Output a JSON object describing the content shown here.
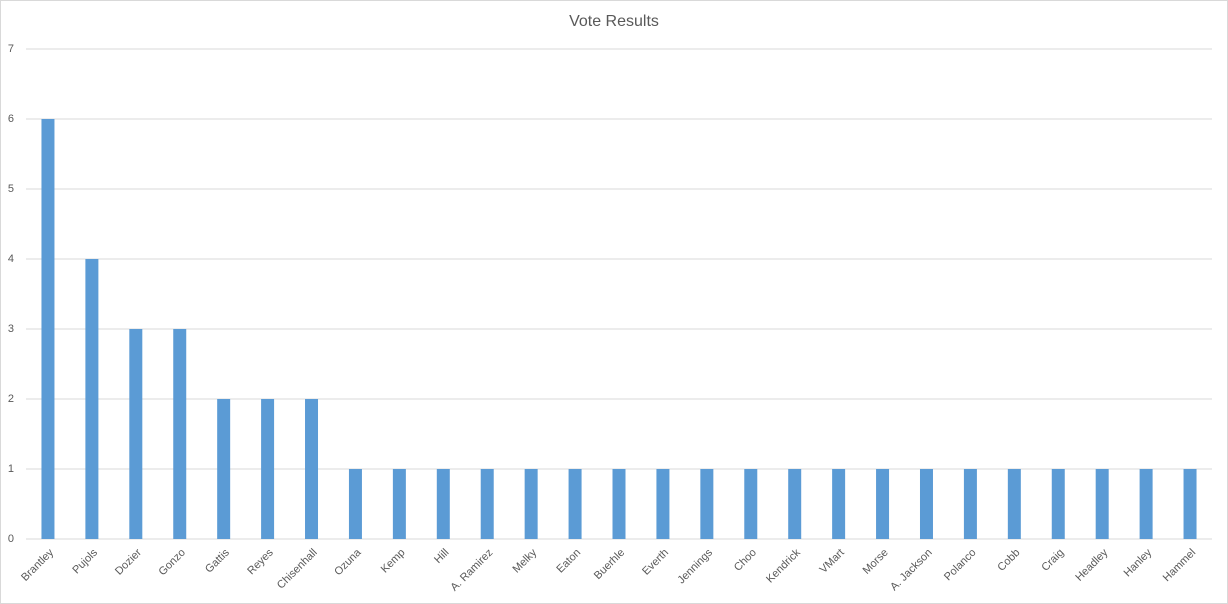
{
  "chart_data": {
    "type": "bar",
    "title": "Vote Results",
    "categories": [
      "Brantley",
      "Pujols",
      "Dozier",
      "Gonzo",
      "Gattis",
      "Reyes",
      "Chisenhall",
      "Ozuna",
      "Kemp",
      "Hill",
      "A. Ramirez",
      "Melky",
      "Eaton",
      "Buerhle",
      "Everth",
      "Jennings",
      "Choo",
      "Kendrick",
      "VMart",
      "Morse",
      "A. Jackson",
      "Polanco",
      "Cobb",
      "Craig",
      "Headley",
      "Hanley",
      "Hammel"
    ],
    "values": [
      6,
      4,
      3,
      3,
      2,
      2,
      2,
      1,
      1,
      1,
      1,
      1,
      1,
      1,
      1,
      1,
      1,
      1,
      1,
      1,
      1,
      1,
      1,
      1,
      1,
      1,
      1
    ],
    "color": "#5b9bd5",
    "ylim": [
      0,
      7
    ],
    "yticks": [
      0,
      1,
      2,
      3,
      4,
      5,
      6,
      7
    ],
    "grid": true
  }
}
